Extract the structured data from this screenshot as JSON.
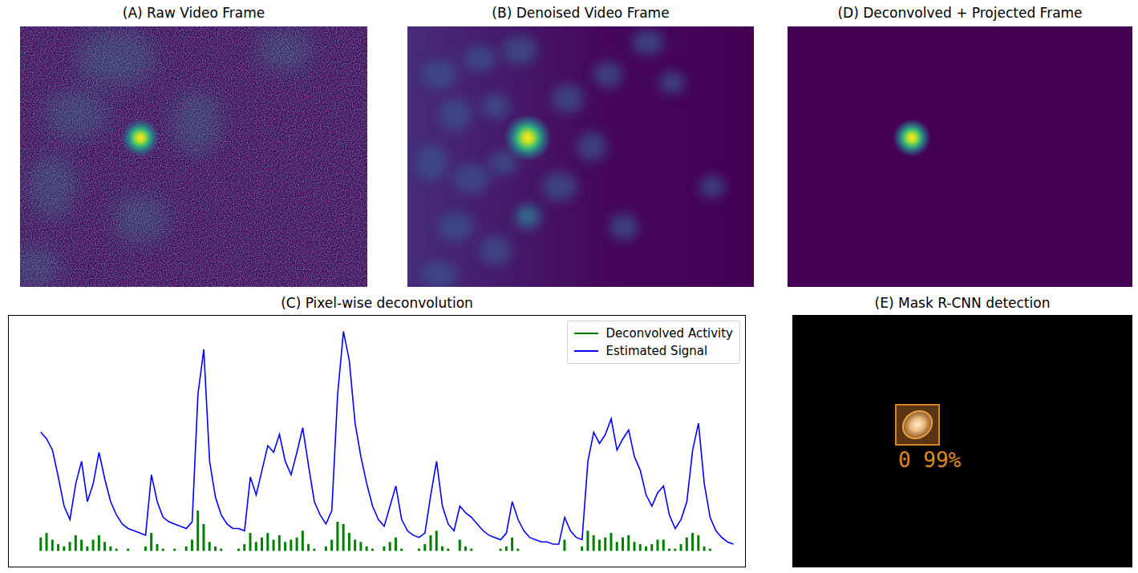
{
  "panels": [
    {
      "title": "(A) Raw Video Frame"
    },
    {
      "title": "(B) Denoised Video Frame"
    },
    {
      "title": "(D) Deconvolved + Projected Frame"
    },
    {
      "title": "(E) Mask R-CNN detection",
      "detection_label": "0 99%"
    }
  ],
  "chart_data": {
    "type": "line",
    "title": "(C) Pixel-wise deconvolution",
    "x": [
      0,
      1,
      2,
      3,
      4,
      5,
      6,
      7,
      8,
      9,
      10,
      11,
      12,
      13,
      14,
      15,
      16,
      17,
      18,
      19,
      20,
      21,
      22,
      23,
      24,
      25,
      26,
      27,
      28,
      29,
      30,
      31,
      32,
      33,
      34,
      35,
      36,
      37,
      38,
      39,
      40,
      41,
      42,
      43,
      44,
      45,
      46,
      47,
      48,
      49,
      50,
      51,
      52,
      53,
      54,
      55,
      56,
      57,
      58,
      59,
      60,
      61,
      62,
      63,
      64,
      65,
      66,
      67,
      68,
      69,
      70,
      71,
      72,
      73,
      74,
      75,
      76,
      77,
      78,
      79,
      80,
      81,
      82,
      83,
      84,
      85,
      86,
      87,
      88,
      89,
      90,
      91,
      92,
      93,
      94,
      95,
      96,
      97,
      98,
      99,
      100,
      101,
      102,
      103,
      104,
      105,
      106,
      107,
      108,
      109,
      110,
      111,
      112,
      113,
      114,
      115,
      116,
      117,
      118,
      119
    ],
    "series": [
      {
        "name": "Deconvolved Activity",
        "color": "#008000",
        "type": "bar",
        "values": [
          0.06,
          0.08,
          0.05,
          0.03,
          0.02,
          0.04,
          0.07,
          0.05,
          0.02,
          0.05,
          0.07,
          0.04,
          0.02,
          0.01,
          0,
          0.01,
          0,
          0,
          0.02,
          0.08,
          0.03,
          0.01,
          0,
          0.01,
          0,
          0.02,
          0.05,
          0.18,
          0.12,
          0.04,
          0.02,
          0.01,
          0,
          0,
          0.01,
          0.03,
          0.08,
          0.04,
          0.06,
          0.08,
          0.05,
          0.07,
          0.04,
          0.05,
          0.06,
          0.09,
          0.03,
          0.01,
          0,
          0.02,
          0.05,
          0.13,
          0.12,
          0.08,
          0.05,
          0.04,
          0.02,
          0.01,
          0,
          0.02,
          0.04,
          0.06,
          0.01,
          0,
          0,
          0.01,
          0.03,
          0.07,
          0.09,
          0.02,
          0.01,
          0,
          0.05,
          0.02,
          0.01,
          0,
          0,
          0,
          0,
          0.01,
          0.02,
          0.06,
          0.01,
          0,
          0,
          0,
          0,
          0,
          0,
          0,
          0.05,
          0,
          0,
          0.02,
          0.09,
          0.07,
          0.05,
          0.06,
          0.08,
          0.04,
          0.06,
          0.07,
          0.04,
          0.03,
          0.02,
          0.03,
          0.05,
          0.05,
          0.01,
          0.01,
          0.03,
          0.06,
          0.08,
          0.07,
          0.02,
          0.01,
          0,
          0,
          0,
          0
        ]
      },
      {
        "name": "Estimated Signal",
        "color": "#0000ff",
        "type": "line",
        "values": [
          0.53,
          0.5,
          0.45,
          0.33,
          0.2,
          0.14,
          0.3,
          0.4,
          0.22,
          0.3,
          0.44,
          0.32,
          0.22,
          0.16,
          0.12,
          0.1,
          0.09,
          0.08,
          0.07,
          0.34,
          0.22,
          0.15,
          0.13,
          0.12,
          0.11,
          0.1,
          0.13,
          0.7,
          0.9,
          0.4,
          0.24,
          0.16,
          0.12,
          0.1,
          0.1,
          0.09,
          0.33,
          0.25,
          0.36,
          0.47,
          0.44,
          0.52,
          0.4,
          0.34,
          0.44,
          0.55,
          0.38,
          0.22,
          0.16,
          0.12,
          0.18,
          0.7,
          0.98,
          0.85,
          0.57,
          0.42,
          0.3,
          0.2,
          0.14,
          0.11,
          0.2,
          0.29,
          0.14,
          0.09,
          0.07,
          0.06,
          0.08,
          0.25,
          0.4,
          0.2,
          0.12,
          0.09,
          0.2,
          0.17,
          0.15,
          0.12,
          0.09,
          0.07,
          0.06,
          0.05,
          0.08,
          0.22,
          0.14,
          0.09,
          0.06,
          0.05,
          0.04,
          0.04,
          0.03,
          0.03,
          0.15,
          0.09,
          0.06,
          0.05,
          0.4,
          0.53,
          0.48,
          0.52,
          0.59,
          0.45,
          0.5,
          0.54,
          0.42,
          0.36,
          0.25,
          0.2,
          0.26,
          0.29,
          0.16,
          0.1,
          0.14,
          0.22,
          0.45,
          0.57,
          0.3,
          0.15,
          0.09,
          0.06,
          0.04,
          0.03
        ]
      }
    ],
    "xlim": [
      -5.5,
      121
    ],
    "ylim": [
      -0.07,
      1.05
    ],
    "xticks": [],
    "yticks": [],
    "tick_labels": false,
    "legend": "upper right"
  }
}
